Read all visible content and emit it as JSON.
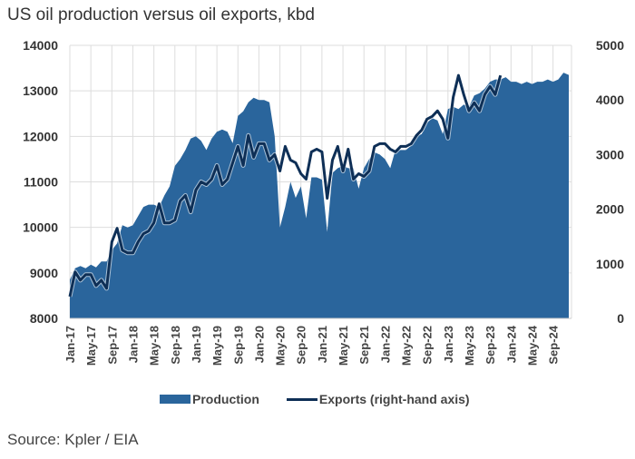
{
  "title": "US oil production versus oil exports, kbd",
  "source": "Source: Kpler / EIA",
  "colors": {
    "production": "#2a659c",
    "exports": "#0e2f56",
    "grid": "#dddddd"
  },
  "chart_data": {
    "type": "area",
    "title": "US oil production versus oil exports, kbd",
    "xlabel": "",
    "ylabel": "",
    "grid": true,
    "legend_position": "bottom",
    "x_start": "Jan-17",
    "x_end": "Dec-24",
    "x_tick_labels": [
      "Jan-17",
      "May-17",
      "Sep-17",
      "Jan-18",
      "May-18",
      "Sep-18",
      "Jan-19",
      "May-19",
      "Sep-19",
      "Jan-20",
      "May-20",
      "Sep-20",
      "Jan-21",
      "May-21",
      "Sep-21",
      "Jan-22",
      "May-22",
      "Sep-22",
      "Jan-23",
      "May-23",
      "Sep-23",
      "Jan-24",
      "May-24",
      "Sep-24"
    ],
    "y_left": {
      "lim": [
        8000,
        14000
      ],
      "ticks": [
        "8000",
        "9000",
        "10000",
        "11000",
        "12000",
        "13000",
        "14000"
      ]
    },
    "y_right": {
      "lim": [
        0,
        5000
      ],
      "ticks": [
        "0",
        "1000",
        "2000",
        "3000",
        "4000",
        "5000"
      ]
    },
    "series": [
      {
        "name": "Production",
        "type": "area",
        "axis": "left",
        "values": [
          8850,
          9100,
          9150,
          9100,
          9180,
          9120,
          9250,
          9250,
          9500,
          9650,
          10050,
          10000,
          10050,
          10250,
          10450,
          10500,
          10500,
          10450,
          10700,
          10900,
          11350,
          11500,
          11700,
          11950,
          12000,
          11900,
          11700,
          11950,
          12100,
          12150,
          12100,
          11850,
          12450,
          12550,
          12750,
          12850,
          12800,
          12800,
          12750,
          12000,
          10000,
          10450,
          11000,
          10650,
          10900,
          10200,
          11100,
          11100,
          11050,
          9900,
          11200,
          11300,
          11350,
          11300,
          11300,
          10850,
          11300,
          11500,
          11650,
          11600,
          11500,
          11300,
          11700,
          11700,
          11700,
          11800,
          12000,
          12050,
          12300,
          12400,
          12350,
          12050,
          12600,
          12650,
          12600,
          12700,
          12650,
          12900,
          12950,
          13050,
          13200,
          13250,
          13250,
          13300,
          13200,
          13200,
          13150,
          13200,
          13150,
          13200,
          13200,
          13250,
          13200,
          13250,
          13400,
          13350
        ]
      },
      {
        "name": "Exports (right-hand axis)",
        "type": "line",
        "axis": "right",
        "values": [
          400,
          850,
          700,
          800,
          800,
          600,
          700,
          550,
          1400,
          1650,
          1250,
          1200,
          1200,
          1400,
          1550,
          1600,
          1750,
          2100,
          1750,
          1750,
          1800,
          2150,
          2250,
          1950,
          2350,
          2500,
          2450,
          2550,
          2800,
          2450,
          2550,
          2850,
          3150,
          2800,
          3350,
          2950,
          3200,
          3200,
          2900,
          3000,
          2700,
          3150,
          2900,
          2850,
          2650,
          2550,
          3050,
          3100,
          3050,
          2200,
          2900,
          3150,
          2700,
          3100,
          2550,
          2650,
          2600,
          2700,
          3150,
          3200,
          3200,
          3100,
          3050,
          3150,
          3150,
          3200,
          3350,
          3450,
          3650,
          3700,
          3800,
          3650,
          3300,
          4050,
          4450,
          4100,
          3800,
          3950,
          3800,
          4100,
          4250,
          4100,
          4450
        ]
      }
    ]
  }
}
